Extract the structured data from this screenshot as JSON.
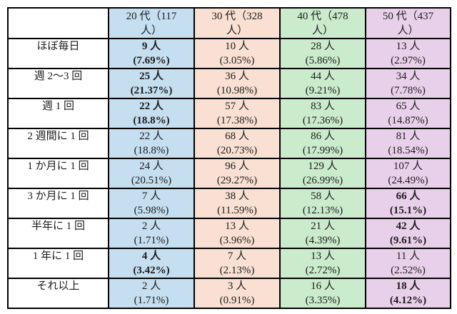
{
  "table": {
    "border_color": "#000000",
    "text_color": "#1c1c1c",
    "corner_label": "",
    "header": {
      "columns": [
        {
          "id": "20s",
          "line1": "20 代（117",
          "line2": "人）",
          "color": "#C5DEF0"
        },
        {
          "id": "30s",
          "line1": "30 代（328",
          "line2": "人）",
          "color": "#F9E0D2"
        },
        {
          "id": "40s",
          "line1": "40 代（478",
          "line2": "人）",
          "color": "#CBEBCD"
        },
        {
          "id": "50s",
          "line1": "50 代（437",
          "line2": "人）",
          "color": "#E9D0EA"
        }
      ]
    },
    "rows": [
      {
        "label": "ほぼ毎日",
        "cells": [
          {
            "count": "9 人",
            "percent": "(7.69%)",
            "bold": true
          },
          {
            "count": "10 人",
            "percent": "(3.05%)",
            "bold": false
          },
          {
            "count": "28 人",
            "percent": "(5.86%)",
            "bold": false
          },
          {
            "count": "13 人",
            "percent": "(2.97%)",
            "bold": false
          }
        ]
      },
      {
        "label": "週 2～3 回",
        "cells": [
          {
            "count": "25 人",
            "percent": "(21.37%)",
            "bold": true
          },
          {
            "count": "36 人",
            "percent": "(10.98%)",
            "bold": false
          },
          {
            "count": "44 人",
            "percent": "(9.21%)",
            "bold": false
          },
          {
            "count": "34 人",
            "percent": "(7.78%)",
            "bold": false
          }
        ]
      },
      {
        "label": "週 1 回",
        "cells": [
          {
            "count": "22 人",
            "percent": "(18.8%)",
            "bold": true
          },
          {
            "count": "57 人",
            "percent": "(17.38%)",
            "bold": false
          },
          {
            "count": "83 人",
            "percent": "(17.36%)",
            "bold": false
          },
          {
            "count": "65 人",
            "percent": "(14.87%)",
            "bold": false
          }
        ]
      },
      {
        "label": "2 週間に 1 回",
        "cells": [
          {
            "count": "22 人",
            "percent": "(18.8%)",
            "bold": false
          },
          {
            "count": "68 人",
            "percent": "(20.73%)",
            "bold": false
          },
          {
            "count": "86 人",
            "percent": "(17.99%)",
            "bold": false
          },
          {
            "count": "81 人",
            "percent": "(18.54%)",
            "bold": false
          }
        ]
      },
      {
        "label": "1 か月に 1 回",
        "cells": [
          {
            "count": "24 人",
            "percent": "(20.51%)",
            "bold": false
          },
          {
            "count": "96 人",
            "percent": "(29.27%)",
            "bold": false
          },
          {
            "count": "129 人",
            "percent": "(26.99%)",
            "bold": false
          },
          {
            "count": "107 人",
            "percent": "(24.49%)",
            "bold": false
          }
        ]
      },
      {
        "label": "3 か月に 1 回",
        "cells": [
          {
            "count": "7 人",
            "percent": "(5.98%)",
            "bold": false
          },
          {
            "count": "38 人",
            "percent": "(11.59%)",
            "bold": false
          },
          {
            "count": "58 人",
            "percent": "(12.13%)",
            "bold": false
          },
          {
            "count": "66 人",
            "percent": "(15.1%)",
            "bold": true
          }
        ]
      },
      {
        "label": "半年に 1 回",
        "cells": [
          {
            "count": "2 人",
            "percent": "(1.71%)",
            "bold": false
          },
          {
            "count": "13 人",
            "percent": "(3.96%)",
            "bold": false
          },
          {
            "count": "21 人",
            "percent": "(4.39%)",
            "bold": false
          },
          {
            "count": "42 人",
            "percent": "(9.61%)",
            "bold": true
          }
        ]
      },
      {
        "label": "1 年に 1 回",
        "cells": [
          {
            "count": "4 人",
            "percent": "(3.42%)",
            "bold": true
          },
          {
            "count": "7 人",
            "percent": "(2.13%)",
            "bold": false
          },
          {
            "count": "13 人",
            "percent": "(2.72%)",
            "bold": false
          },
          {
            "count": "11 人",
            "percent": "(2.52%)",
            "bold": false
          }
        ]
      },
      {
        "label": "それ以上",
        "cells": [
          {
            "count": "2 人",
            "percent": "(1.71%)",
            "bold": false
          },
          {
            "count": "3 人",
            "percent": "(0.91%)",
            "bold": false
          },
          {
            "count": "16 人",
            "percent": "(3.35%)",
            "bold": false
          },
          {
            "count": "18 人",
            "percent": "(4.12%)",
            "bold": true
          }
        ]
      }
    ]
  },
  "chart_data": {
    "type": "table",
    "title": "",
    "columns": [
      "20代（117人）",
      "30代（328人）",
      "40代（478人）",
      "50代（437人）"
    ],
    "column_totals": [
      117,
      328,
      478,
      437
    ],
    "row_labels": [
      "ほぼ毎日",
      "週2～3回",
      "週1回",
      "2週間に1回",
      "1か月に1回",
      "3か月に1回",
      "半年に1回",
      "1年に1回",
      "それ以上"
    ],
    "counts": [
      [
        9,
        10,
        28,
        13
      ],
      [
        25,
        36,
        44,
        34
      ],
      [
        22,
        57,
        83,
        65
      ],
      [
        22,
        68,
        86,
        81
      ],
      [
        24,
        96,
        129,
        107
      ],
      [
        7,
        38,
        58,
        66
      ],
      [
        2,
        13,
        21,
        42
      ],
      [
        4,
        7,
        13,
        11
      ],
      [
        2,
        3,
        16,
        18
      ]
    ],
    "percents": [
      [
        7.69,
        3.05,
        5.86,
        2.97
      ],
      [
        21.37,
        10.98,
        9.21,
        7.78
      ],
      [
        18.8,
        17.38,
        17.36,
        14.87
      ],
      [
        18.8,
        20.73,
        17.99,
        18.54
      ],
      [
        20.51,
        29.27,
        26.99,
        24.49
      ],
      [
        5.98,
        11.59,
        12.13,
        15.1
      ],
      [
        1.71,
        3.96,
        4.39,
        9.61
      ],
      [
        3.42,
        2.13,
        2.72,
        2.52
      ],
      [
        1.71,
        0.91,
        3.35,
        4.12
      ]
    ],
    "bold_cells_row_col": [
      [
        0,
        0
      ],
      [
        1,
        0
      ],
      [
        2,
        0
      ],
      [
        5,
        3
      ],
      [
        6,
        3
      ],
      [
        7,
        0
      ],
      [
        8,
        3
      ]
    ],
    "column_colors": [
      "#C5DEF0",
      "#F9E0D2",
      "#CBEBCD",
      "#E9D0EA"
    ]
  }
}
